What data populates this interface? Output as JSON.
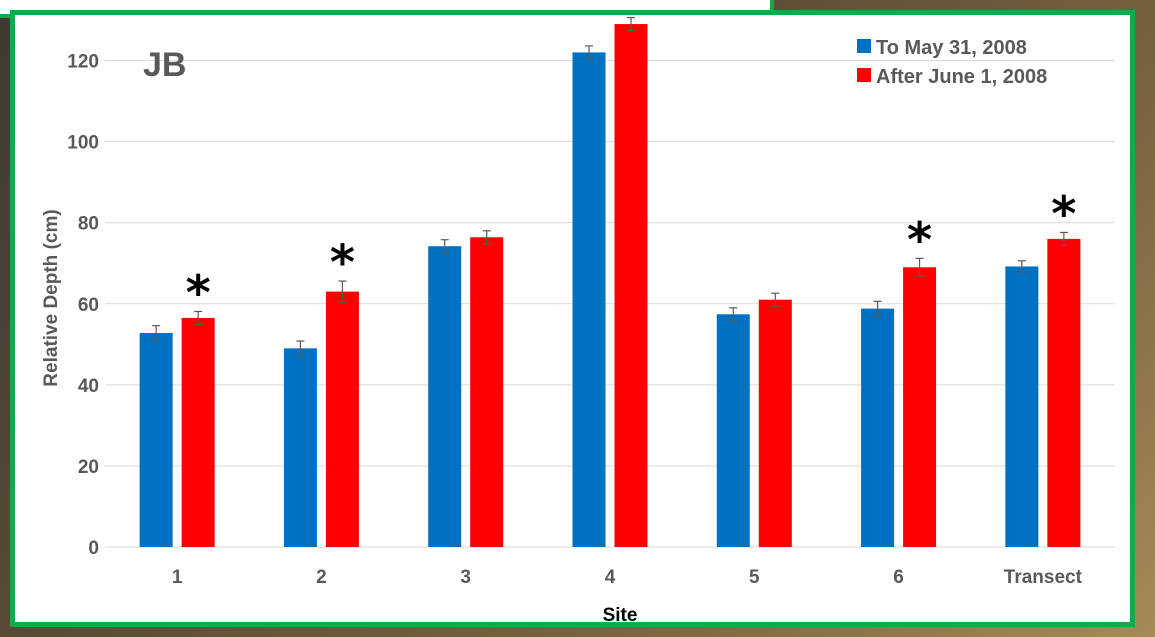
{
  "chart_data": {
    "type": "bar",
    "title": "JB",
    "xlabel": "Site",
    "ylabel": "Relative Depth (cm)",
    "categories": [
      "1",
      "2",
      "3",
      "4",
      "5",
      "6",
      "Transect"
    ],
    "ylim": [
      0,
      130
    ],
    "yticks": [
      0,
      20,
      40,
      60,
      80,
      100,
      120
    ],
    "grid": true,
    "legend_position": "top-right",
    "significance_marker": "*",
    "series": [
      {
        "name": "To May 31, 2008",
        "color": "#0070c0",
        "values": [
          52.8,
          49.0,
          74.2,
          122.0,
          57.4,
          58.8,
          69.2
        ],
        "errors": [
          1.8,
          1.8,
          1.6,
          1.6,
          1.6,
          1.8,
          1.4
        ],
        "significant": [
          false,
          false,
          false,
          false,
          false,
          false,
          false
        ]
      },
      {
        "name": "After June 1, 2008",
        "color": "#ff0000",
        "values": [
          56.5,
          63.0,
          76.4,
          129.0,
          61.0,
          69.0,
          76.0
        ],
        "errors": [
          1.6,
          2.6,
          1.6,
          1.6,
          1.6,
          2.2,
          1.6
        ],
        "significant": [
          true,
          true,
          false,
          false,
          false,
          true,
          true
        ]
      }
    ]
  }
}
